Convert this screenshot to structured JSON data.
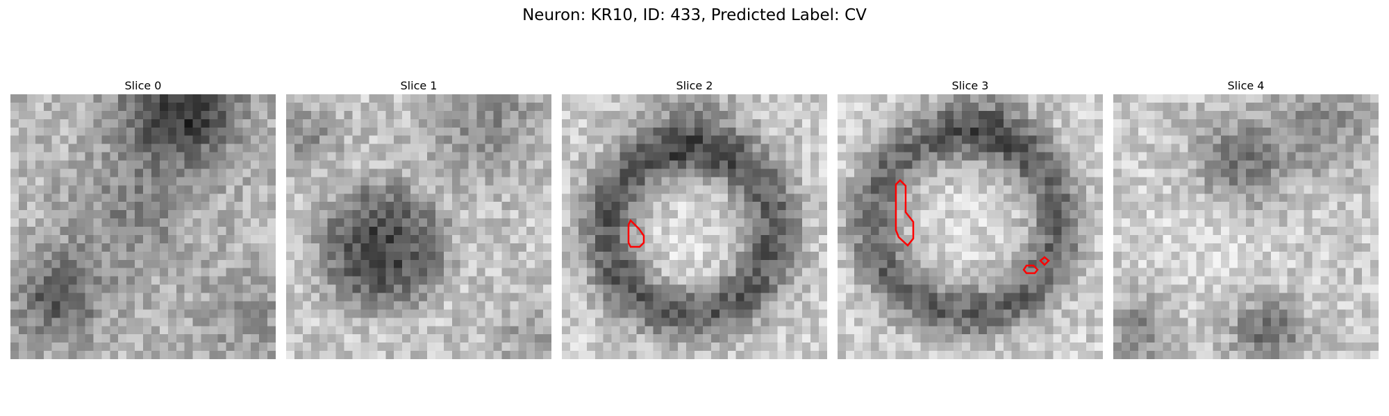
{
  "figure": {
    "title": "Neuron: KR10, ID: 433, Predicted Label: CV"
  },
  "colormap": "gray",
  "overlay_color": "#ff0000",
  "panels": [
    {
      "title": "Slice 0",
      "has_contour": false
    },
    {
      "title": "Slice 1",
      "has_contour": false
    },
    {
      "title": "Slice 2",
      "has_contour": true
    },
    {
      "title": "Slice 3",
      "has_contour": true
    },
    {
      "title": "Slice 4",
      "has_contour": false
    }
  ]
}
